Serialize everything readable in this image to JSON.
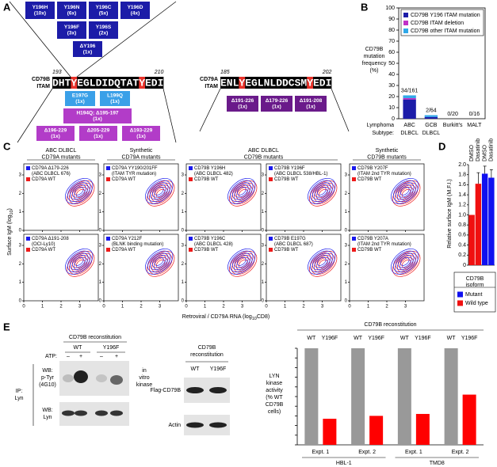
{
  "panel_a": {
    "label": "A",
    "cd79b": {
      "itam_label": [
        "CD79B",
        "ITAM"
      ],
      "start": 193,
      "end": 210,
      "segments": [
        {
          "text": "DHT"
        },
        {
          "text": "Y",
          "color": "#e8322a"
        },
        {
          "text": "EGLDIDQTAT"
        },
        {
          "text": "Y",
          "color": "#e8322a"
        },
        {
          "text": "EDI"
        }
      ],
      "mutations_top": [
        {
          "lines": [
            "Y196H",
            "(10x)"
          ],
          "color": "#1c1ca8"
        },
        {
          "lines": [
            "Y196N",
            "(6x)"
          ],
          "color": "#1c1ca8"
        },
        {
          "lines": [
            "Y196C",
            "(5x)"
          ],
          "color": "#1c1ca8"
        },
        {
          "lines": [
            "Y196D",
            "(4x)"
          ],
          "color": "#1c1ca8"
        },
        {
          "lines": [
            "Y196F",
            "(3x)"
          ],
          "color": "#1c1ca8"
        },
        {
          "lines": [
            "Y196S",
            "(2x)"
          ],
          "color": "#1c1ca8"
        },
        {
          "lines": [
            "ΔY196",
            "(1x)"
          ],
          "color": "#1c1ca8"
        }
      ],
      "mutations_bottom": [
        {
          "lines": [
            "E197G",
            "(1x)"
          ],
          "color": "#3aa0e8"
        },
        {
          "lines": [
            "L199Q",
            "(1x)"
          ],
          "color": "#3aa0e8"
        },
        {
          "lines": [
            "H194Q; Δ195-197",
            "(1x)"
          ],
          "color": "#b23cc8"
        },
        {
          "lines": [
            "Δ196-229",
            "(1x)"
          ],
          "color": "#b23cc8"
        },
        {
          "lines": [
            "Δ205-229",
            "(1x)"
          ],
          "color": "#b23cc8"
        },
        {
          "lines": [
            "Δ193-229",
            "(1x)"
          ],
          "color": "#b23cc8"
        }
      ]
    },
    "cd79a": {
      "itam_label": [
        "CD79A",
        "ITAM"
      ],
      "start": 185,
      "end": 202,
      "segments": [
        {
          "text": "ENL"
        },
        {
          "text": "Y",
          "color": "#e8322a"
        },
        {
          "text": "EGLNLDDCSM"
        },
        {
          "text": "Y",
          "color": "#e8322a"
        },
        {
          "text": "EDI"
        }
      ],
      "mutations_bottom": [
        {
          "lines": [
            "Δ191-226",
            "(1x)"
          ],
          "color": "#6a1a8a"
        },
        {
          "lines": [
            "Δ179-226",
            "(1x)"
          ],
          "color": "#6a1a8a"
        },
        {
          "lines": [
            "Δ191-208",
            "(1x)"
          ],
          "color": "#6a1a8a"
        }
      ]
    }
  },
  "chart_data": [
    {
      "type": "stacked_bar",
      "panel_label": "B",
      "y_label": [
        "CD79B",
        "mutation",
        "frequency",
        "(%)"
      ],
      "row_labels": [
        "Lymphoma",
        "Subtype:"
      ],
      "categories": [
        [
          "ABC",
          "DLBCL"
        ],
        [
          "GCB",
          "DLBCL"
        ],
        [
          "Burkitt's"
        ],
        [
          "MALT"
        ]
      ],
      "annotations": [
        "34/161",
        "2/64",
        "0/20",
        "0/16"
      ],
      "series": [
        {
          "name": "CD79B Y196 ITAM mutation",
          "color": "#1c1ca8",
          "values": [
            17.4,
            1.6,
            0,
            0
          ]
        },
        {
          "name": "CD79B ITAM deletion",
          "color": "#c030c8",
          "values": [
            1.2,
            0,
            0,
            0
          ]
        },
        {
          "name": "CD79B other ITAM mutation",
          "color": "#30a8e8",
          "values": [
            2.5,
            1.6,
            0,
            0
          ]
        }
      ],
      "ylim": [
        0,
        100
      ],
      "yticks": [
        0,
        10,
        20,
        30,
        40,
        50,
        60,
        70,
        80,
        90,
        100
      ],
      "legend": "top"
    },
    {
      "type": "bar",
      "panel_label": "D",
      "y_label": "Relative surface IgM (M.F.I.)",
      "categories": [
        "DMSO",
        "Dasatinib",
        "DMSO",
        "Dasatinib"
      ],
      "legend_title": [
        "CD79B",
        "isoform"
      ],
      "series": [
        {
          "name": "Mutant",
          "color": "#1010f0",
          "values": [
            null,
            null,
            1.82,
            1.74
          ],
          "errors": [
            null,
            null,
            0.15,
            0.16
          ]
        },
        {
          "name": "Wild type",
          "color": "#f01010",
          "values": [
            1,
            1.62,
            null,
            null
          ],
          "errors": [
            null,
            0.22,
            null,
            null
          ]
        }
      ],
      "ylim": [
        0,
        2
      ],
      "yticks": [
        0,
        0.2,
        0.4,
        0.6,
        0.8,
        {
          "value": 1,
          "label": "1.0"
        },
        1.2,
        1.4,
        1.6,
        1.8,
        {
          "value": 2,
          "label": "2.0"
        }
      ]
    },
    {
      "type": "grouped_bar",
      "panel_label": "E",
      "header": "CD79B reconstitution",
      "y_label": [
        "LYN",
        "kinase",
        "activity",
        "(% WT",
        "CD79B",
        "cells)"
      ],
      "categories": [
        "Expt. 1",
        "Expt. 2",
        "Expt. 1",
        "Expt. 2"
      ],
      "groups": [
        "HBL-1",
        "TMD8"
      ],
      "series": [
        {
          "name": "WT",
          "color": "#999999",
          "values": [
            100,
            100,
            100,
            100
          ]
        },
        {
          "name": "Y196F",
          "color": "#ff0000",
          "values": [
            27,
            30,
            32,
            52
          ]
        }
      ],
      "ylim": [
        0,
        100
      ],
      "yticks": [
        0,
        10,
        20,
        30,
        40,
        50,
        60,
        70,
        80,
        90,
        100
      ]
    }
  ],
  "panel_c": {
    "label": "C",
    "y_label": [
      "Surface IgM (log",
      "10",
      ")"
    ],
    "x_label": [
      "Retroviral / CD79A RNA (log",
      "10",
      "CD8)"
    ],
    "xlim": [
      0,
      4
    ],
    "ylim": [
      0,
      3.6
    ],
    "xticks": [
      0,
      1,
      2,
      3
    ],
    "yticks": [
      0,
      1,
      2,
      3
    ],
    "mutant_color": "#1a1aee",
    "wild_type_color": "#ee1a1a",
    "groups": [
      [
        "ABC DLBCL",
        "CD79A mutants"
      ],
      [
        "Synthetic",
        "CD79A mutants"
      ],
      [
        "ABC DLBCL",
        "CD79B mutants"
      ],
      [
        "Synthetic",
        "CD79B mutants"
      ]
    ],
    "plots": [
      {
        "mutant": [
          "CD79A Δ179-226",
          "(ABC DLBCL 676)"
        ],
        "wild_type": "CD79A WT"
      },
      {
        "mutant": [
          "CD79A YY190/201FF",
          "(ITAM TYR mutation)"
        ],
        "wild_type": "CD79A WT"
      },
      {
        "mutant": [
          "CD79B Y196H",
          "(ABC DLBCL 482)"
        ],
        "wild_type": "CD79B WT"
      },
      {
        "mutant": [
          "CD79B Y196F",
          "(ABC DLBCL 538/HBL-1)"
        ],
        "wild_type": "CD79B WT"
      },
      {
        "mutant": [
          "CD79B Y207F",
          "(ITAM 2nd TYR mutation)"
        ],
        "wild_type": "CD79B WT"
      },
      {
        "mutant": [
          "CD79A Δ191-208",
          "(OCI-Ly10)"
        ],
        "wild_type": "CD79A WT"
      },
      {
        "mutant": [
          "CD79A Y212F",
          "(BLNK binding mutation)"
        ],
        "wild_type": "CD79A WT"
      },
      {
        "mutant": [
          "CD79B Y196C",
          "(ABC DLBCL 428)"
        ],
        "wild_type": "CD79B WT"
      },
      {
        "mutant": [
          "CD79B E197G",
          "(ABC DLBCL 687)"
        ],
        "wild_type": "CD79B WT"
      },
      {
        "mutant": [
          "CD79B Y207A",
          "(ITAM 2nd TYR mutation)"
        ],
        "wild_type": "CD79B WT"
      }
    ]
  },
  "panel_e": {
    "kinase_blot": {
      "header": "CD79B reconstitution",
      "conditions": [
        "WT",
        "Y196F"
      ],
      "atp_label": "ATP:",
      "atp": [
        "–",
        "+",
        "–",
        "+"
      ],
      "ip": [
        "IP:",
        "Lyn"
      ],
      "wb_ptyr": [
        "WB:",
        "p-Tyr",
        "(4G10)"
      ],
      "wb_lyn": [
        "WB:",
        "Lyn"
      ],
      "assay": [
        "in",
        "vitro",
        "kinase"
      ]
    },
    "expression_blot": {
      "header": [
        "CD79B",
        "reconstitution"
      ],
      "conditions": [
        "WT",
        "Y196F"
      ],
      "bands": [
        "Flag-CD79B",
        "Actin"
      ]
    }
  }
}
